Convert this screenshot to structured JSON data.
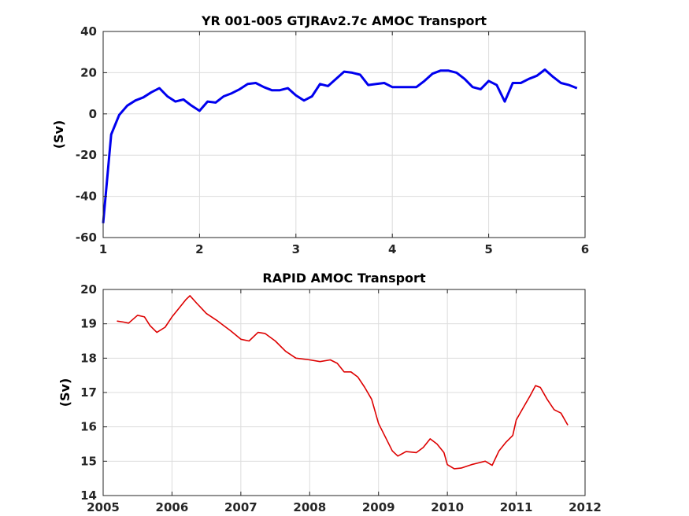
{
  "chart_data": [
    {
      "type": "line",
      "title": "YR 001-005 GTJRAv2.7c AMOC Transport",
      "xlabel": "",
      "ylabel": "(Sv)",
      "xlim": [
        1,
        6
      ],
      "ylim": [
        -60,
        40
      ],
      "xticks": [
        1,
        2,
        3,
        4,
        5,
        6
      ],
      "yticks": [
        -60,
        -40,
        -20,
        0,
        20,
        40
      ],
      "grid": true,
      "series": [
        {
          "color": "#0000ee",
          "x": [
            1.0,
            1.083,
            1.167,
            1.25,
            1.333,
            1.417,
            1.5,
            1.583,
            1.667,
            1.75,
            1.833,
            1.917,
            2.0,
            2.083,
            2.167,
            2.25,
            2.333,
            2.417,
            2.5,
            2.583,
            2.667,
            2.75,
            2.833,
            2.917,
            3.0,
            3.083,
            3.167,
            3.25,
            3.333,
            3.417,
            3.5,
            3.583,
            3.667,
            3.75,
            3.833,
            3.917,
            4.0,
            4.083,
            4.167,
            4.25,
            4.333,
            4.417,
            4.5,
            4.583,
            4.667,
            4.75,
            4.833,
            4.917,
            5.0,
            5.083,
            5.167,
            5.25,
            5.333,
            5.417,
            5.5,
            5.583,
            5.667,
            5.75,
            5.833,
            5.917
          ],
          "y": [
            -53,
            -10,
            -0.5,
            4,
            6.5,
            8,
            10.5,
            12.5,
            8.5,
            6,
            7,
            4,
            1.5,
            6,
            5.5,
            8.5,
            10,
            12,
            14.5,
            15,
            13,
            11.5,
            11.5,
            12.5,
            9,
            6.5,
            8.5,
            14.5,
            13.5,
            17,
            20.5,
            20,
            19,
            14,
            14.5,
            15,
            13,
            13,
            13,
            13,
            16,
            19.5,
            21,
            21,
            20,
            17,
            13,
            12,
            16,
            14,
            6,
            15,
            15,
            17,
            18.5,
            21.5,
            18,
            15,
            14,
            12.5
          ]
        }
      ]
    },
    {
      "type": "line",
      "title": "RAPID AMOC Transport",
      "xlabel": "",
      "ylabel": "(Sv)",
      "xlim": [
        2005,
        2012
      ],
      "ylim": [
        14,
        20
      ],
      "xticks": [
        2005,
        2006,
        2007,
        2008,
        2009,
        2010,
        2011,
        2012
      ],
      "yticks": [
        14,
        15,
        16,
        17,
        18,
        19,
        20
      ],
      "grid": true,
      "series": [
        {
          "color": "#dd0000",
          "x": [
            2005.2,
            2005.3,
            2005.37,
            2005.5,
            2005.6,
            2005.68,
            2005.78,
            2005.9,
            2006.0,
            2006.1,
            2006.2,
            2006.26,
            2006.35,
            2006.5,
            2006.65,
            2006.75,
            2006.85,
            2007.0,
            2007.12,
            2007.25,
            2007.35,
            2007.5,
            2007.65,
            2007.8,
            2008.0,
            2008.15,
            2008.3,
            2008.4,
            2008.5,
            2008.6,
            2008.7,
            2008.8,
            2008.9,
            2009.0,
            2009.1,
            2009.2,
            2009.28,
            2009.4,
            2009.55,
            2009.65,
            2009.75,
            2009.85,
            2009.95,
            2010.0,
            2010.1,
            2010.2,
            2010.35,
            2010.45,
            2010.55,
            2010.65,
            2010.75,
            2010.85,
            2010.95,
            2011.0,
            2011.1,
            2011.2,
            2011.28,
            2011.35,
            2011.45,
            2011.55,
            2011.65,
            2011.75
          ],
          "y": [
            19.08,
            19.05,
            19.02,
            19.25,
            19.2,
            18.95,
            18.75,
            18.9,
            19.2,
            19.45,
            19.7,
            19.82,
            19.62,
            19.3,
            19.1,
            18.95,
            18.8,
            18.55,
            18.5,
            18.75,
            18.72,
            18.5,
            18.2,
            18.0,
            17.95,
            17.9,
            17.95,
            17.85,
            17.6,
            17.6,
            17.45,
            17.15,
            16.8,
            16.1,
            15.7,
            15.3,
            15.15,
            15.28,
            15.25,
            15.4,
            15.65,
            15.5,
            15.25,
            14.9,
            14.78,
            14.8,
            14.9,
            14.95,
            15.0,
            14.88,
            15.3,
            15.55,
            15.75,
            16.2,
            16.55,
            16.9,
            17.2,
            17.15,
            16.8,
            16.5,
            16.4,
            16.05
          ]
        }
      ]
    }
  ]
}
